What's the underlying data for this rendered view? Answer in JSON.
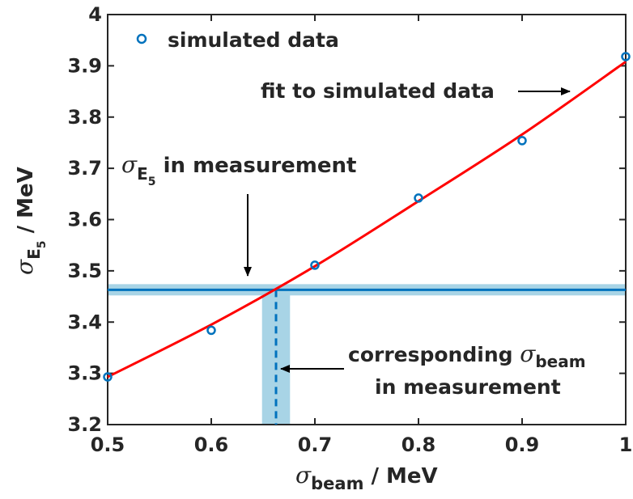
{
  "chart_data": {
    "type": "scatter",
    "x_axis": {
      "range": [
        0.5,
        1.0
      ],
      "ticks": [
        0.5,
        0.6,
        0.7,
        0.8,
        0.9,
        1.0
      ],
      "tick_labels": [
        "0.5",
        "0.6",
        "0.7",
        "0.8",
        "0.9",
        "1"
      ],
      "label_symbol": "σ",
      "label_subscript": "beam",
      "label_unit": " / MeV"
    },
    "y_axis": {
      "range": [
        3.2,
        4.0
      ],
      "ticks": [
        3.2,
        3.3,
        3.4,
        3.5,
        3.6,
        3.7,
        3.8,
        3.9,
        4.0
      ],
      "tick_labels": [
        "3.2",
        "3.3",
        "3.4",
        "3.5",
        "3.6",
        "3.7",
        "3.8",
        "3.9",
        "4"
      ],
      "label_symbol": "σ",
      "label_subscript": "E",
      "label_subsubscript": "5",
      "label_unit": " / MeV"
    },
    "grid": false,
    "legend": {
      "placement": "top-left",
      "entry": "simulated data"
    },
    "series": [
      {
        "name": "simulated data",
        "kind": "markers",
        "x": [
          0.5,
          0.6,
          0.7,
          0.8,
          0.9,
          1.0
        ],
        "y": [
          3.293,
          3.384,
          3.511,
          3.642,
          3.754,
          3.918
        ]
      },
      {
        "kind": "fit-line",
        "x": [
          0.5,
          0.6,
          0.7,
          0.8,
          0.9,
          1.0
        ],
        "y": [
          3.293,
          3.395,
          3.509,
          3.636,
          3.766,
          3.908
        ]
      }
    ],
    "measurement": {
      "sigma_E5": 3.463,
      "sigma_E5_band": [
        3.452,
        3.474
      ],
      "sigma_beam": 0.6625,
      "sigma_beam_band": [
        0.649,
        0.676
      ]
    },
    "annotations": {
      "fit": "fit to simulated data",
      "measured_sigma_symbol": "σ",
      "measured_sigma_sub": "E",
      "measured_sigma_subsub": "5",
      "measured_sigma_text": " in measurement",
      "corresponding_text": "corresponding ",
      "corresponding_symbol": "σ",
      "corresponding_sub": "beam",
      "corresponding_line2": "in measurement"
    },
    "colors": {
      "markers": "#0072BD",
      "fit": "#FF0000",
      "measurement_line": "#0072BD",
      "band": "#A8D4E6",
      "arrows": "#000000"
    }
  }
}
